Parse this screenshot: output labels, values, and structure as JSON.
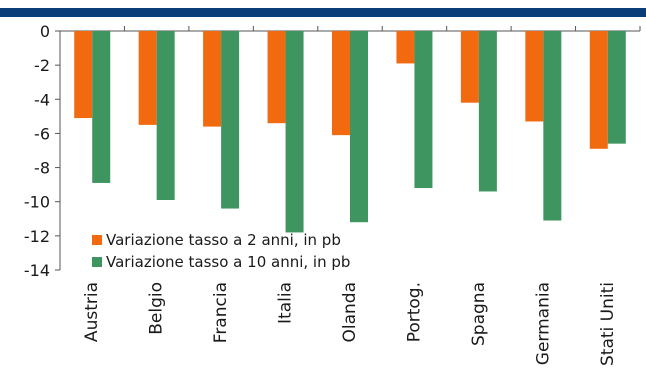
{
  "colors": {
    "header_bar": "#0b3e78",
    "axis": "#555555",
    "series_2y": "#f26a10",
    "series_10y": "#3f9560"
  },
  "chart_data": {
    "type": "bar",
    "categories": [
      "Austria",
      "Belgio",
      "Francia",
      "Italia",
      "Olanda",
      "Portog.",
      "Spagna",
      "Germania",
      "Stati Uniti"
    ],
    "series": [
      {
        "name": "Variazione tasso a 2 anni, in pb",
        "color": "#f26a10",
        "values": [
          -5.1,
          -5.5,
          -5.6,
          -5.4,
          -6.1,
          -1.9,
          -4.2,
          -5.3,
          -6.9
        ]
      },
      {
        "name": "Variazione tasso a 10 anni, in pb",
        "color": "#3f9560",
        "values": [
          -8.9,
          -9.9,
          -10.4,
          -11.8,
          -11.2,
          -9.2,
          -9.4,
          -11.1,
          -6.6
        ]
      }
    ],
    "ylim": [
      -14,
      0
    ],
    "yticks": [
      "0",
      "-2",
      "-4",
      "-6",
      "-8",
      "-10",
      "-12",
      "-14"
    ],
    "grid": false,
    "legend_position": "bottom-left"
  }
}
